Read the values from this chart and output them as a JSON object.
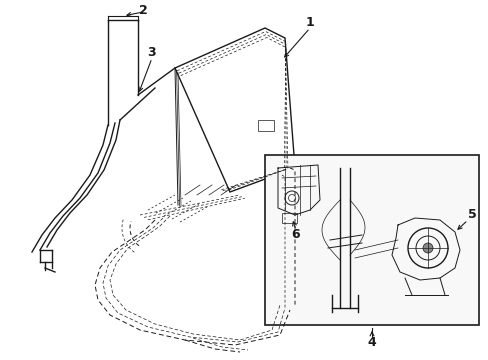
{
  "bg_color": "#ffffff",
  "line_color": "#1a1a1a",
  "fig_width": 4.89,
  "fig_height": 3.6,
  "dpi": 100,
  "font_size": 9
}
